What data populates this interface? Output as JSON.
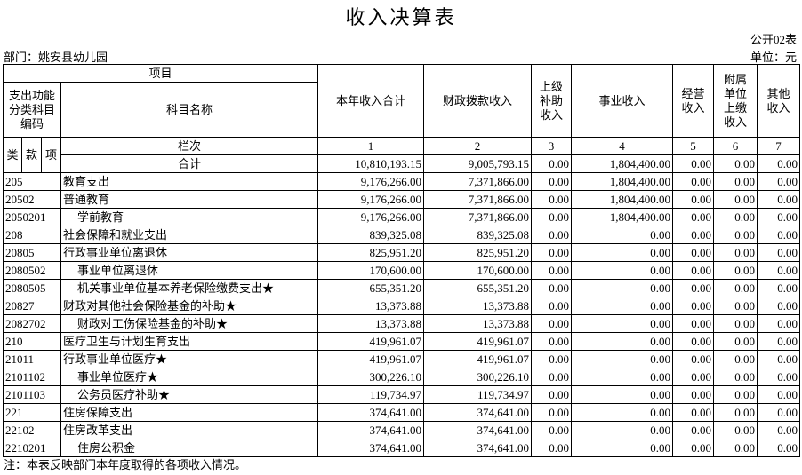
{
  "header": {
    "title": "收入决算表",
    "form_no": "公开02表",
    "department": "部门：姚安县幼儿园",
    "unit": "单位：元"
  },
  "table": {
    "project_label": "项目",
    "code_label": [
      "支出功能",
      "分类科目",
      "编码"
    ],
    "name_label": "科目名称",
    "columns": [
      [
        "本年收入合计"
      ],
      [
        "财政拨款收入"
      ],
      [
        "上级",
        "补助",
        "收入"
      ],
      [
        "事业收入"
      ],
      [
        "经营",
        "收入"
      ],
      [
        "附属",
        "单位",
        "上缴",
        "收入"
      ],
      [
        "其他",
        "收入"
      ]
    ],
    "code_parts": [
      "类",
      "款",
      "项"
    ],
    "index_label": "栏次",
    "index": [
      "1",
      "2",
      "3",
      "4",
      "5",
      "6",
      "7"
    ],
    "total_label": "合计",
    "total": [
      "10,810,193.15",
      "9,005,793.15",
      "0.00",
      "1,804,400.00",
      "0.00",
      "0.00",
      "0.00"
    ],
    "rows": [
      {
        "code": "205",
        "name": "教育支出",
        "values": [
          "9,176,266.00",
          "7,371,866.00",
          "0.00",
          "1,804,400.00",
          "0.00",
          "0.00",
          "0.00"
        ]
      },
      {
        "code": "20502",
        "name": "普通教育",
        "values": [
          "9,176,266.00",
          "7,371,866.00",
          "0.00",
          "1,804,400.00",
          "0.00",
          "0.00",
          "0.00"
        ]
      },
      {
        "code": "2050201",
        "name": "学前教育",
        "values": [
          "9,176,266.00",
          "7,371,866.00",
          "0.00",
          "1,804,400.00",
          "0.00",
          "0.00",
          "0.00"
        ]
      },
      {
        "code": "208",
        "name": "社会保障和就业支出",
        "values": [
          "839,325.08",
          "839,325.08",
          "0.00",
          "0.00",
          "0.00",
          "0.00",
          "0.00"
        ]
      },
      {
        "code": "20805",
        "name": "行政事业单位离退休",
        "values": [
          "825,951.20",
          "825,951.20",
          "0.00",
          "0.00",
          "0.00",
          "0.00",
          "0.00"
        ]
      },
      {
        "code": "2080502",
        "name": "事业单位离退休",
        "values": [
          "170,600.00",
          "170,600.00",
          "0.00",
          "0.00",
          "0.00",
          "0.00",
          "0.00"
        ]
      },
      {
        "code": "2080505",
        "name": "机关事业单位基本养老保险缴费支出★",
        "values": [
          "655,351.20",
          "655,351.20",
          "0.00",
          "0.00",
          "0.00",
          "0.00",
          "0.00"
        ]
      },
      {
        "code": "20827",
        "name": "财政对其他社会保险基金的补助★",
        "values": [
          "13,373.88",
          "13,373.88",
          "0.00",
          "0.00",
          "0.00",
          "0.00",
          "0.00"
        ]
      },
      {
        "code": "2082702",
        "name": "财政对工伤保险基金的补助★",
        "values": [
          "13,373.88",
          "13,373.88",
          "0.00",
          "0.00",
          "0.00",
          "0.00",
          "0.00"
        ]
      },
      {
        "code": "210",
        "name": "医疗卫生与计划生育支出",
        "values": [
          "419,961.07",
          "419,961.07",
          "0.00",
          "0.00",
          "0.00",
          "0.00",
          "0.00"
        ]
      },
      {
        "code": "21011",
        "name": "行政事业单位医疗★",
        "values": [
          "419,961.07",
          "419,961.07",
          "0.00",
          "0.00",
          "0.00",
          "0.00",
          "0.00"
        ]
      },
      {
        "code": "2101102",
        "name": "事业单位医疗★",
        "values": [
          "300,226.10",
          "300,226.10",
          "0.00",
          "0.00",
          "0.00",
          "0.00",
          "0.00"
        ]
      },
      {
        "code": "2101103",
        "name": "公务员医疗补助★",
        "values": [
          "119,734.97",
          "119,734.97",
          "0.00",
          "0.00",
          "0.00",
          "0.00",
          "0.00"
        ]
      },
      {
        "code": "221",
        "name": "住房保障支出",
        "values": [
          "374,641.00",
          "374,641.00",
          "0.00",
          "0.00",
          "0.00",
          "0.00",
          "0.00"
        ]
      },
      {
        "code": "22102",
        "name": "住房改革支出",
        "values": [
          "374,641.00",
          "374,641.00",
          "0.00",
          "0.00",
          "0.00",
          "0.00",
          "0.00"
        ]
      },
      {
        "code": "2210201",
        "name": "住房公积金",
        "values": [
          "374,641.00",
          "374,641.00",
          "0.00",
          "0.00",
          "0.00",
          "0.00",
          "0.00"
        ]
      }
    ]
  },
  "footer": {
    "note": "注：本表反映部门本年度取得的各项收入情况。"
  }
}
